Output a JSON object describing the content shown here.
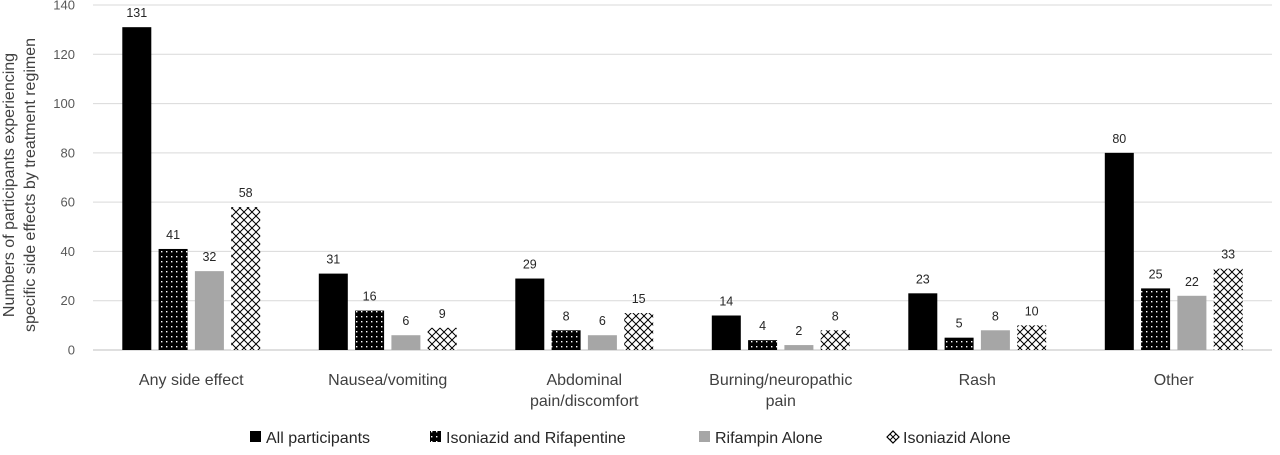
{
  "chart_data": {
    "type": "bar",
    "title": "",
    "xlabel": "",
    "ylabel_lines": [
      "Numbers of participants experiencing",
      "specific side effects by treatment regimen"
    ],
    "ylim": [
      0,
      140
    ],
    "yticks": [
      0,
      20,
      40,
      60,
      80,
      100,
      120,
      140
    ],
    "grid": true,
    "legend_position": "bottom",
    "categories": [
      [
        "Any side effect"
      ],
      [
        "Nausea/vomiting"
      ],
      [
        "Abdominal",
        "pain/discomfort"
      ],
      [
        "Burning/neuropathic",
        "pain"
      ],
      [
        "Rash"
      ],
      [
        "Other"
      ]
    ],
    "series": [
      {
        "name": "All participants",
        "pattern": "solid-black",
        "color": "#000000",
        "values": [
          131,
          31,
          29,
          14,
          23,
          80
        ]
      },
      {
        "name": "Isoniazid and Rifapentine",
        "pattern": "dotted-black",
        "color": "#000000",
        "values": [
          41,
          16,
          8,
          4,
          5,
          25
        ]
      },
      {
        "name": "Rifampin Alone",
        "pattern": "solid-gray",
        "color": "#a6a6a6",
        "values": [
          32,
          6,
          6,
          2,
          8,
          22
        ]
      },
      {
        "name": "Isoniazid Alone",
        "pattern": "crosshatch",
        "color": "#000000",
        "values": [
          58,
          9,
          15,
          8,
          10,
          33
        ]
      }
    ]
  }
}
